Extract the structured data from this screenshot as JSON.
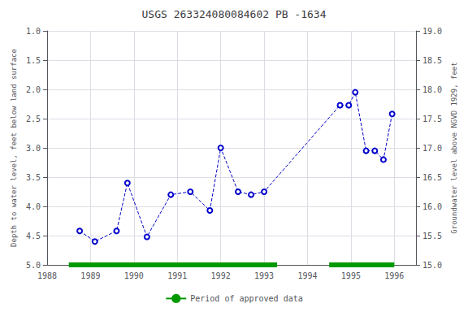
{
  "chart_data": {
    "type": "line",
    "title": "USGS 263324080084602 PB -1634",
    "ylabel": "Depth to water level, feet below land surface",
    "y2label": "Groundwater level above NGVD 1929, feet",
    "x": [
      1988.75,
      1989.1,
      1989.6,
      1989.85,
      1990.3,
      1990.85,
      1991.3,
      1991.75,
      1992.0,
      1992.4,
      1992.7,
      1993.0,
      1994.75,
      1994.95,
      1995.1,
      1995.35,
      1995.55,
      1995.75,
      1995.95
    ],
    "series": [
      {
        "values": [
          4.42,
          4.6,
          4.42,
          3.6,
          4.52,
          3.8,
          3.75,
          4.07,
          3.0,
          3.75,
          3.8,
          3.75,
          2.27,
          2.27,
          2.05,
          3.05,
          3.05,
          3.2,
          2.42
        ],
        "color": "#0000cc",
        "marker": "circle",
        "line_style": "dashed"
      }
    ],
    "periods": {
      "name": "Period of approved data",
      "color": "#009900",
      "segments": [
        [
          1988.5,
          1993.3
        ],
        [
          1994.5,
          1996.0
        ]
      ]
    },
    "xlim": [
      1988.0,
      1996.5
    ],
    "xticks": [
      1988,
      1989,
      1990,
      1991,
      1992,
      1993,
      1994,
      1995,
      1996
    ],
    "ylim": [
      5.0,
      1.0
    ],
    "yticks": [
      {
        "value": 1,
        "label": "1.0"
      },
      1.5,
      {
        "value": 2,
        "label": "2.0"
      },
      2.5,
      {
        "value": 3,
        "label": "3.0"
      },
      3.5,
      {
        "value": 4,
        "label": "4.0"
      },
      4.5,
      {
        "value": 5,
        "label": "5.0"
      }
    ],
    "y2lim": [
      15.0,
      19.0
    ],
    "y2ticks": [
      {
        "value": 15,
        "label": "15.0"
      },
      15.5,
      {
        "value": 16,
        "label": "16.0"
      },
      16.5,
      {
        "value": 17,
        "label": "17.0"
      },
      17.5,
      {
        "value": 18,
        "label": "18.0"
      },
      18.5,
      {
        "value": 19,
        "label": "19.0"
      }
    ],
    "grid": true,
    "legend": "bottom"
  }
}
